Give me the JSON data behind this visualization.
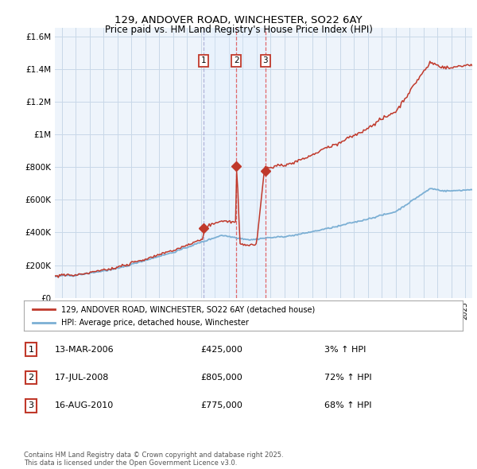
{
  "title": "129, ANDOVER ROAD, WINCHESTER, SO22 6AY",
  "subtitle": "Price paid vs. HM Land Registry's House Price Index (HPI)",
  "ytick_values": [
    0,
    200000,
    400000,
    600000,
    800000,
    1000000,
    1200000,
    1400000,
    1600000
  ],
  "ylim": [
    0,
    1650000
  ],
  "xlim_start": 1995.5,
  "xlim_end": 2025.5,
  "hpi_color": "#7bafd4",
  "price_color": "#c0392b",
  "vline_color": "#e05050",
  "vfill_color": "#ddeeff",
  "grid_color": "#c8d8e8",
  "bg_color": "#eef4fb",
  "legend_label_red": "129, ANDOVER ROAD, WINCHESTER, SO22 6AY (detached house)",
  "legend_label_blue": "HPI: Average price, detached house, Winchester",
  "table_entries": [
    {
      "num": "1",
      "date": "13-MAR-2006",
      "price": "£425,000",
      "pct": "3% ↑ HPI"
    },
    {
      "num": "2",
      "date": "17-JUL-2008",
      "price": "£805,000",
      "pct": "72% ↑ HPI"
    },
    {
      "num": "3",
      "date": "16-AUG-2010",
      "price": "£775,000",
      "pct": "68% ↑ HPI"
    }
  ],
  "sale_years": [
    2006.2,
    2008.54,
    2010.62
  ],
  "sale_prices": [
    425000,
    805000,
    775000
  ],
  "sale_labels": [
    "1",
    "2",
    "3"
  ],
  "footnote": "Contains HM Land Registry data © Crown copyright and database right 2025.\nThis data is licensed under the Open Government Licence v3.0.",
  "background_color": "#ffffff"
}
